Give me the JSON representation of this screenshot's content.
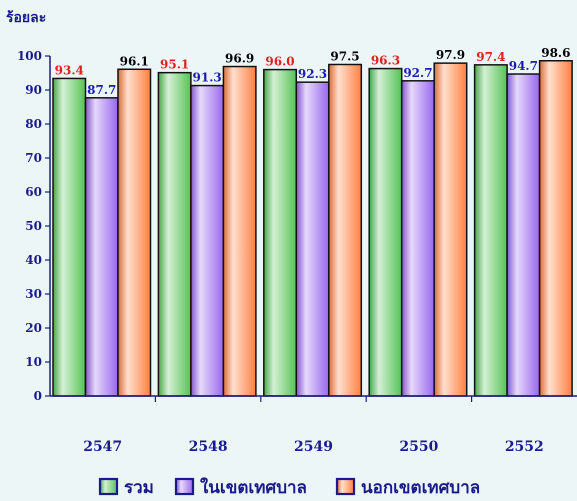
{
  "chart_data": {
    "type": "bar",
    "ylabel": "ร้อยละ",
    "ylim": [
      0,
      100
    ],
    "yticks": [
      "0",
      "10",
      "20",
      "30",
      "40",
      "50",
      "60",
      "70",
      "80",
      "90",
      "100"
    ],
    "categories": [
      "2547",
      "2548",
      "2549",
      "2550",
      "2552"
    ],
    "series": [
      {
        "name": "รวม",
        "values": [
          93.4,
          95.1,
          96.0,
          96.3,
          97.4
        ],
        "labels": [
          "93.4",
          "95.1",
          "96.0",
          "96.3",
          "97.4"
        ],
        "color": "#55c355",
        "label_color": "#e0201c"
      },
      {
        "name": "ในเขตเทศบาล",
        "values": [
          87.7,
          91.3,
          92.3,
          92.7,
          94.7
        ],
        "labels": [
          "87.7",
          "91.3",
          "92.3",
          "92.7",
          "94.7"
        ],
        "color": "#9966ee",
        "label_color": "#1a1ab8"
      },
      {
        "name": "นอกเขตเทศบาล",
        "values": [
          96.1,
          96.9,
          97.5,
          97.9,
          98.6
        ],
        "labels": [
          "96.1",
          "96.9",
          "97.5",
          "97.9",
          "98.6"
        ],
        "color": "#ff8040",
        "label_color": "#000000"
      }
    ],
    "grid": false,
    "legend_position": "bottom"
  }
}
